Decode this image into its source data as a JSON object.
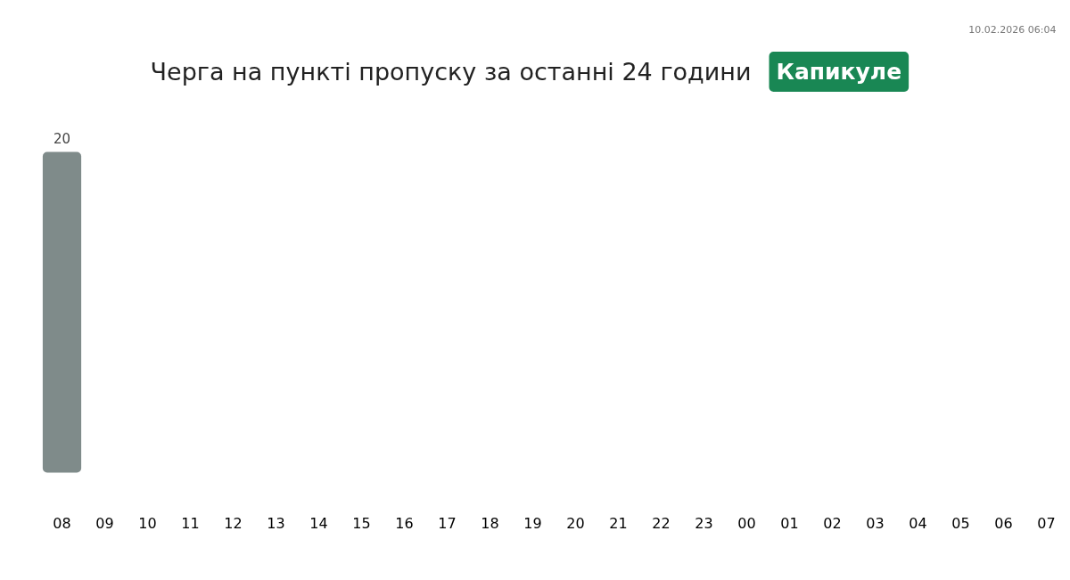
{
  "chart_data": {
    "type": "bar",
    "title": "Черга на пункті пропуску за останні 24 години",
    "subtitle": "Капикуле",
    "annotations": [
      "10.02.2026 06:04"
    ],
    "categories": [
      "08",
      "09",
      "10",
      "11",
      "12",
      "13",
      "14",
      "15",
      "16",
      "17",
      "18",
      "19",
      "20",
      "21",
      "22",
      "23",
      "00",
      "01",
      "02",
      "03",
      "04",
      "05",
      "06",
      "07"
    ],
    "values": [
      20,
      null,
      null,
      null,
      null,
      null,
      null,
      null,
      null,
      null,
      null,
      null,
      null,
      null,
      null,
      null,
      null,
      null,
      null,
      null,
      null,
      null,
      null,
      null
    ],
    "value_labels": [
      "20",
      null,
      null,
      null,
      null,
      null,
      null,
      null,
      null,
      null,
      null,
      null,
      null,
      null,
      null,
      null,
      null,
      null,
      null,
      null,
      null,
      null,
      null,
      null
    ],
    "color": "#7f8b8a"
  }
}
